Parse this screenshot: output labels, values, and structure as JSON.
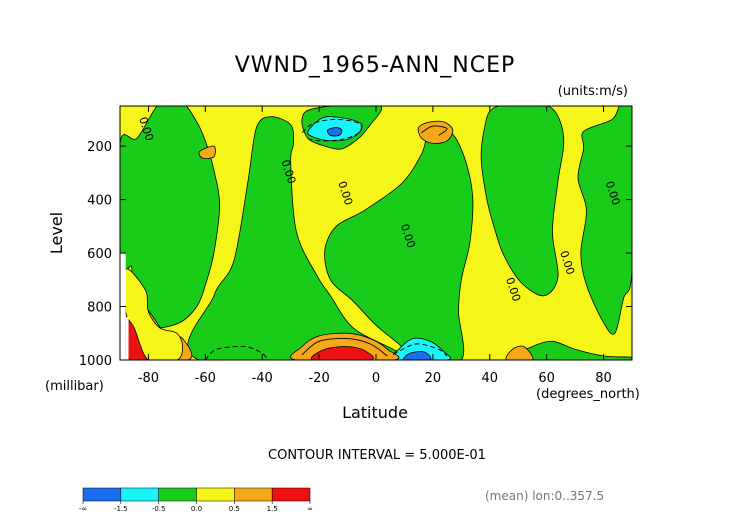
{
  "chart_data": {
    "type": "filled-contour",
    "title": "VWND_1965-ANN_NCEP",
    "units_label": "(units:m/s)",
    "xlabel": "Latitude",
    "x_units_label": "(degrees_north)",
    "ylabel": "Level",
    "y_units_label": "(millibar)",
    "xlim": [
      -90,
      90
    ],
    "ylim": [
      1000,
      50
    ],
    "y_inverted": true,
    "x_ticks": [
      -80,
      -60,
      -40,
      -20,
      0,
      20,
      40,
      60,
      80
    ],
    "x_tick_labels": [
      "-80",
      "-60",
      "-40",
      "-20",
      "0",
      "20",
      "40",
      "60",
      "80"
    ],
    "y_ticks": [
      200,
      400,
      600,
      800,
      1000
    ],
    "y_tick_labels": [
      "200",
      "400",
      "600",
      "800",
      "1000"
    ],
    "contour_interval_text": "CONTOUR INTERVAL = 5.000E-01",
    "contour_interval": 0.5,
    "footer_text": "(mean) lon:0..357.5",
    "zero_contour_label": "0.00",
    "zero_contour_labels": [
      {
        "lat": -82,
        "level": 140,
        "text": "0.00"
      },
      {
        "lat": -32,
        "level": 300,
        "text": "0.00"
      },
      {
        "lat": -12,
        "level": 380,
        "text": "0.00"
      },
      {
        "lat": 10,
        "level": 540,
        "text": "0.00"
      },
      {
        "lat": 47,
        "level": 740,
        "text": "0.00"
      },
      {
        "lat": 66,
        "level": 640,
        "text": "0.00"
      },
      {
        "lat": 82,
        "level": 380,
        "text": "0.00"
      }
    ],
    "colors": {
      "lt_-1.5": "#1a6ef0",
      "-1.5_-0.5": "#19f5f7",
      "-0.5_0.0": "#19cc19",
      "0.0_0.5": "#f5f519",
      "0.5_1.5": "#f5a819",
      "gt_1.5": "#ee1111"
    },
    "colorbar": {
      "bins": [
        "#1a6ef0",
        "#19f5f7",
        "#19cc19",
        "#f5f519",
        "#f5a819",
        "#ee1111"
      ],
      "labels": [
        "-∞",
        "-1.5",
        "-0.5",
        "0.0",
        "0.5",
        "1.5",
        "∞"
      ]
    },
    "regions": [
      {
        "level": "0.0_0.5",
        "points": [
          [
            -90,
            50
          ],
          [
            90,
            50
          ],
          [
            90,
            1000
          ],
          [
            -90,
            1000
          ]
        ]
      },
      {
        "level": "-0.5_0.0",
        "points": [
          [
            -90,
            190
          ],
          [
            -84,
            170
          ],
          [
            -76,
            40
          ],
          [
            -68,
            40
          ],
          [
            -63,
            110
          ],
          [
            -60,
            180
          ],
          [
            -57,
            290
          ],
          [
            -55,
            420
          ],
          [
            -57,
            600
          ],
          [
            -60,
            720
          ],
          [
            -63,
            800
          ],
          [
            -69,
            860
          ],
          [
            -79,
            880
          ],
          [
            -84,
            820
          ],
          [
            -86,
            720
          ],
          [
            -86,
            650
          ],
          [
            -90,
            640
          ]
        ]
      },
      {
        "level": "-0.5_0.0",
        "points": [
          [
            -57,
            760
          ],
          [
            -50,
            630
          ],
          [
            -45,
            330
          ],
          [
            -42,
            130
          ],
          [
            -37,
            90
          ],
          [
            -30,
            120
          ],
          [
            -29,
            190
          ],
          [
            -30,
            260
          ],
          [
            -28,
            520
          ],
          [
            -21,
            680
          ],
          [
            -16,
            760
          ],
          [
            -8,
            880
          ],
          [
            6,
            960
          ],
          [
            12,
            1000
          ],
          [
            -62,
            1000
          ]
        ]
      },
      {
        "level": "-0.5_0.0",
        "points": [
          [
            -26,
            100
          ],
          [
            -22,
            60
          ],
          [
            -2,
            40
          ],
          [
            2,
            60
          ],
          [
            -2,
            120
          ],
          [
            -6,
            170
          ],
          [
            -12,
            210
          ],
          [
            -18,
            200
          ],
          [
            -24,
            170
          ]
        ]
      },
      {
        "level": "-1.5_-0.5",
        "points": [
          [
            -24,
            150
          ],
          [
            -21,
            110
          ],
          [
            -17,
            90
          ],
          [
            -9,
            100
          ],
          [
            -5,
            120
          ],
          [
            -6,
            150
          ],
          [
            -10,
            175
          ],
          [
            -16,
            180
          ],
          [
            -21,
            170
          ]
        ]
      },
      {
        "level": "lt_-1.5",
        "points": [
          [
            -17,
            140
          ],
          [
            -14,
            130
          ],
          [
            -12,
            140
          ],
          [
            -13,
            160
          ],
          [
            -16,
            160
          ]
        ]
      },
      {
        "level": "-0.5_0.0",
        "points": [
          [
            -18,
            590
          ],
          [
            -14,
            500
          ],
          [
            -4,
            440
          ],
          [
            9,
            340
          ],
          [
            16,
            230
          ],
          [
            19,
            140
          ],
          [
            26,
            145
          ],
          [
            31,
            240
          ],
          [
            34,
            390
          ],
          [
            33,
            560
          ],
          [
            30,
            700
          ],
          [
            29,
            820
          ],
          [
            30,
            1000
          ],
          [
            14,
            1000
          ],
          [
            8,
            940
          ],
          [
            0,
            870
          ],
          [
            -8,
            780
          ],
          [
            -16,
            700
          ]
        ]
      },
      {
        "level": "-1.5_-0.5",
        "points": [
          [
            6,
            1000
          ],
          [
            8,
            960
          ],
          [
            13,
            920
          ],
          [
            19,
            930
          ],
          [
            24,
            970
          ],
          [
            25,
            1000
          ]
        ]
      },
      {
        "level": "lt_-1.5",
        "points": [
          [
            10,
            1000
          ],
          [
            12,
            975
          ],
          [
            17,
            970
          ],
          [
            19,
            1000
          ]
        ]
      },
      {
        "level": "-0.5_0.0",
        "points": [
          [
            38,
            140
          ],
          [
            41,
            60
          ],
          [
            52,
            40
          ],
          [
            62,
            60
          ],
          [
            66,
            170
          ],
          [
            64,
            330
          ],
          [
            62,
            520
          ],
          [
            64,
            690
          ],
          [
            59,
            760
          ],
          [
            51,
            710
          ],
          [
            45,
            610
          ],
          [
            42,
            520
          ],
          [
            39,
            400
          ],
          [
            37,
            250
          ]
        ]
      },
      {
        "level": "-0.5_0.0",
        "points": [
          [
            73,
            145
          ],
          [
            83,
            100
          ],
          [
            86,
            45
          ],
          [
            90,
            50
          ],
          [
            90,
            660
          ],
          [
            87,
            770
          ],
          [
            84,
            900
          ],
          [
            80,
            860
          ],
          [
            74,
            720
          ],
          [
            72,
            600
          ],
          [
            74,
            440
          ],
          [
            71,
            320
          ],
          [
            73,
            210
          ]
        ]
      },
      {
        "level": "-0.5_0.0",
        "points": [
          [
            48,
            1000
          ],
          [
            55,
            950
          ],
          [
            62,
            930
          ],
          [
            70,
            960
          ],
          [
            80,
            985
          ],
          [
            90,
            990
          ],
          [
            90,
            1000
          ]
        ]
      },
      {
        "level": "0.5_1.5",
        "points": [
          [
            -28,
            1000
          ],
          [
            -26,
            950
          ],
          [
            -20,
            910
          ],
          [
            -10,
            900
          ],
          [
            -2,
            920
          ],
          [
            4,
            960
          ],
          [
            6,
            1000
          ]
        ]
      },
      {
        "level": "gt_1.5",
        "points": [
          [
            -22,
            1000
          ],
          [
            -18,
            960
          ],
          [
            -10,
            950
          ],
          [
            -4,
            965
          ],
          [
            -2,
            1000
          ]
        ]
      },
      {
        "level": "0.5_1.5",
        "points": [
          [
            15,
            130
          ],
          [
            19,
            110
          ],
          [
            24,
            110
          ],
          [
            27,
            140
          ],
          [
            25,
            180
          ],
          [
            20,
            190
          ],
          [
            16,
            170
          ]
        ]
      },
      {
        "level": "0.5_1.5",
        "points": [
          [
            -88,
            820
          ],
          [
            -83,
            780
          ],
          [
            -79,
            830
          ],
          [
            -74,
            900
          ],
          [
            -68,
            920
          ],
          [
            -66,
            1000
          ],
          [
            -88,
            1000
          ]
        ]
      },
      {
        "level": "gt_1.5",
        "points": [
          [
            -88,
            870
          ],
          [
            -85,
            850
          ],
          [
            -82,
            900
          ],
          [
            -80,
            960
          ],
          [
            -79,
            1000
          ],
          [
            -88,
            1000
          ]
        ]
      },
      {
        "level": "0.5_1.5",
        "points": [
          [
            46,
            1000
          ],
          [
            48,
            960
          ],
          [
            52,
            950
          ],
          [
            55,
            1000
          ]
        ]
      },
      {
        "level": "0.5_1.5",
        "points": [
          [
            -62,
            220
          ],
          [
            -57,
            200
          ],
          [
            -57,
            240
          ],
          [
            -61,
            245
          ]
        ]
      },
      {
        "level": "0.0_0.5",
        "points": [
          [
            -88,
            660
          ],
          [
            -81,
            740
          ],
          [
            -80,
            820
          ],
          [
            -76,
            880
          ],
          [
            -70,
            900
          ],
          [
            -68,
            950
          ],
          [
            -70,
            1000
          ],
          [
            -80,
            1000
          ],
          [
            -85,
            880
          ],
          [
            -88,
            820
          ]
        ]
      }
    ],
    "dashed_contours": [
      [
        [
          -26,
          150
        ],
        [
          -22,
          115
        ],
        [
          -14,
          100
        ],
        [
          -6,
          115
        ],
        [
          -6,
          150
        ],
        [
          -12,
          175
        ],
        [
          -20,
          180
        ],
        [
          -25,
          170
        ]
      ],
      [
        [
          -60,
          1000
        ],
        [
          -56,
          960
        ],
        [
          -46,
          950
        ],
        [
          -40,
          975
        ],
        [
          -38,
          1000
        ]
      ],
      [
        [
          6,
          980
        ],
        [
          14,
          940
        ],
        [
          22,
          960
        ],
        [
          25,
          985
        ]
      ]
    ],
    "solid_contours": [
      [
        [
          -26,
          980
        ],
        [
          -20,
          930
        ],
        [
          -10,
          920
        ],
        [
          -2,
          940
        ],
        [
          4,
          985
        ]
      ],
      [
        [
          16,
          150
        ],
        [
          20,
          125
        ],
        [
          25,
          135
        ],
        [
          22,
          160
        ]
      ]
    ],
    "missing_data": [
      {
        "lat_from": -90,
        "lat_to": -88,
        "level_from": 600,
        "level_to": 1000
      },
      {
        "lat_from": -88,
        "lat_to": -87,
        "level_from": 840,
        "level_to": 1000
      }
    ]
  }
}
